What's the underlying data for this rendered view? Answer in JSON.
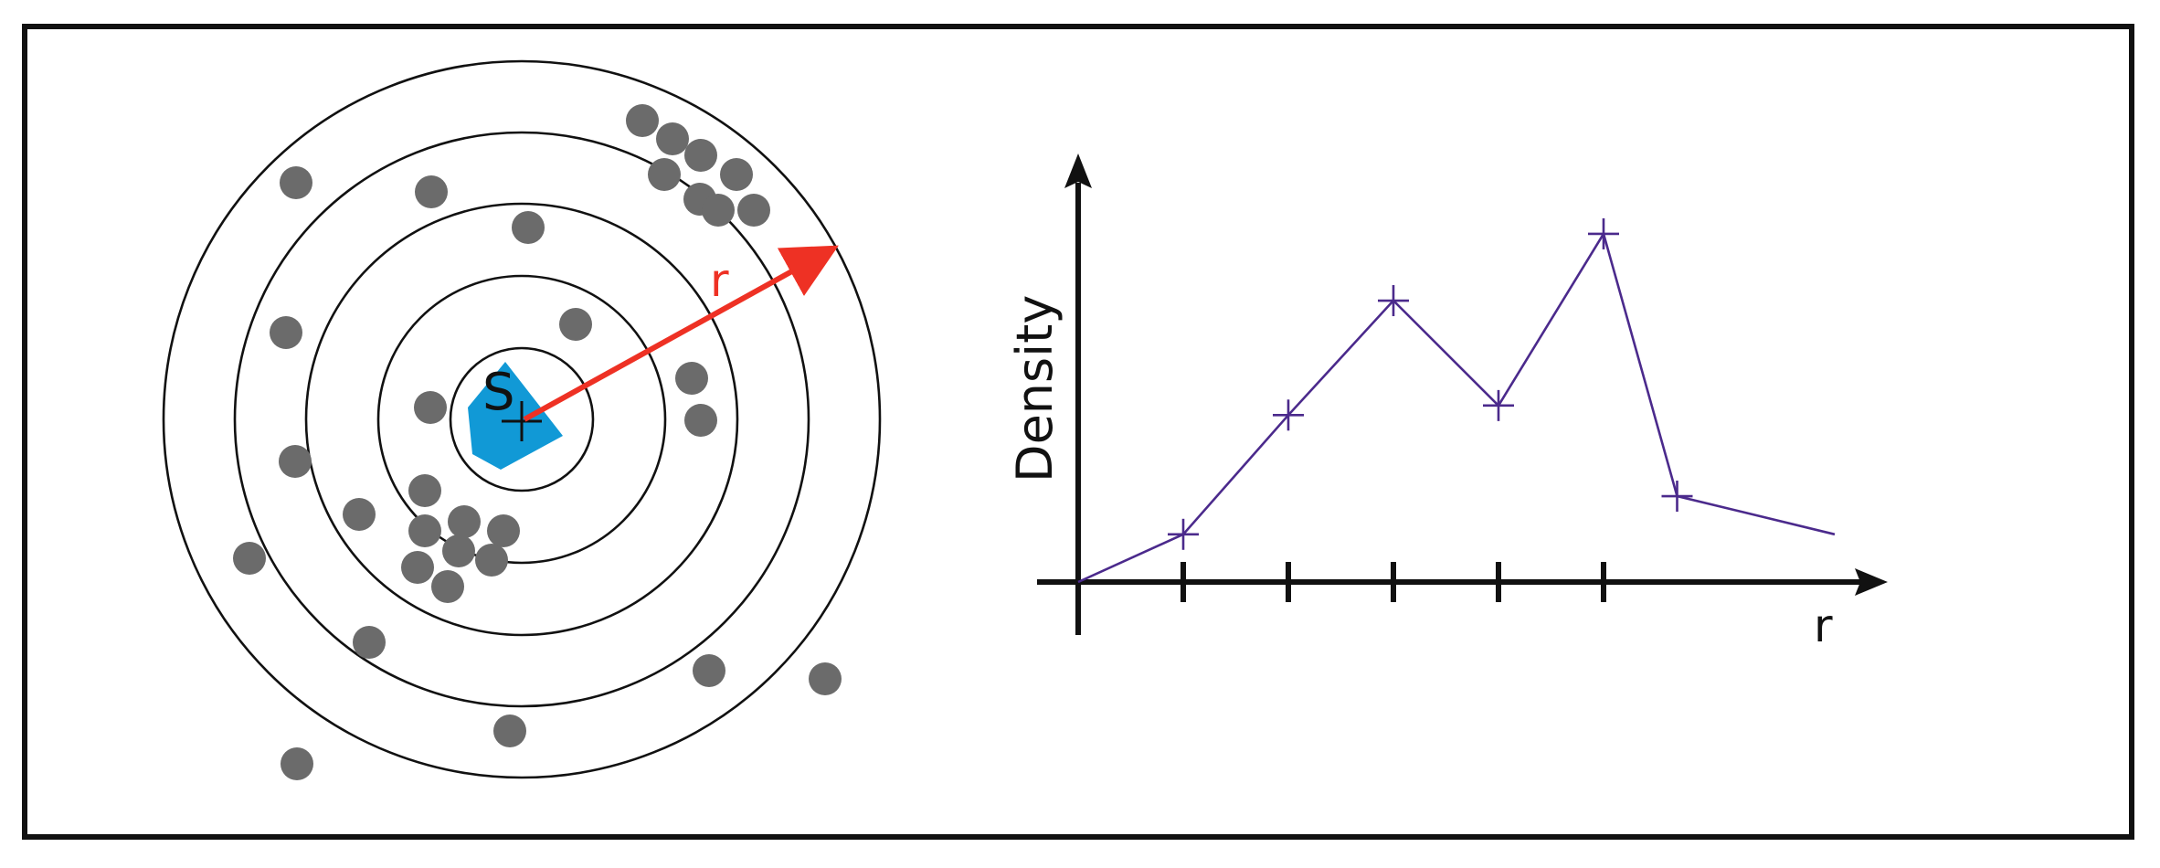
{
  "diagram": {
    "source_label": "S",
    "radius_label": "r",
    "colors": {
      "frame": "#111111",
      "ring": "#111111",
      "point": "#6b6b6b",
      "source_shape": "#1199d6",
      "radius_arrow": "#ee3124",
      "axis": "#111111",
      "density_line": "#4b2a8c"
    }
  },
  "chart_data": {
    "type": "line",
    "title": "",
    "xlabel": "r",
    "ylabel": "Density",
    "x": [
      0,
      1,
      2,
      3,
      4,
      5,
      5.7,
      7.2
    ],
    "y": [
      0,
      1.0,
      3.5,
      5.9,
      3.7,
      7.3,
      1.8,
      1.0
    ],
    "markers": [
      false,
      true,
      true,
      true,
      true,
      true,
      true,
      false
    ],
    "x_ticks": [
      1,
      2,
      3,
      4,
      5
    ],
    "x_tick_labels": [],
    "y_tick_labels": [],
    "grid": false,
    "legend": "none"
  }
}
